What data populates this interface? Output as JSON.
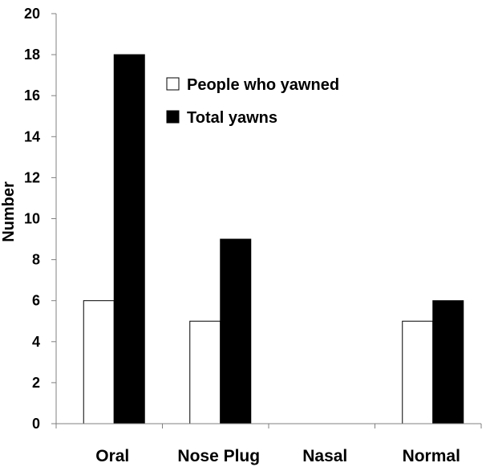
{
  "chart_data": {
    "type": "bar",
    "categories": [
      "Oral",
      "Nose Plug",
      "Nasal",
      "Normal"
    ],
    "series": [
      {
        "name": "People who yawned",
        "values": [
          6,
          5,
          0,
          5
        ],
        "color": "#ffffff"
      },
      {
        "name": "Total yawns",
        "values": [
          18,
          9,
          0,
          6
        ],
        "color": "#000000"
      }
    ],
    "ylabel": "Number",
    "xlabel": "",
    "ylim": [
      0,
      20
    ],
    "yticks": [
      0,
      2,
      4,
      6,
      8,
      10,
      12,
      14,
      16,
      18,
      20
    ],
    "grid": false,
    "legend_position": "top-center"
  }
}
